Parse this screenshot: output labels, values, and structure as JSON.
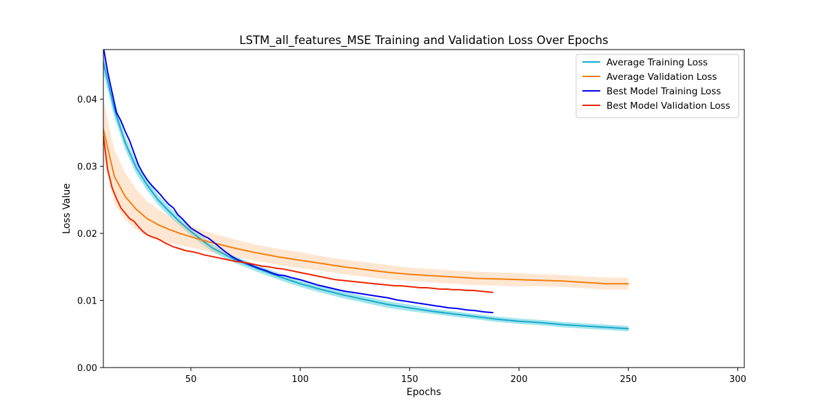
{
  "chart_data": {
    "type": "line",
    "title": "LSTM_all_features_MSE  Training and Validation Loss Over Epochs",
    "xlabel": "Epochs",
    "ylabel": "Loss Value",
    "xlim": [
      10,
      303
    ],
    "ylim": [
      0,
      0.0474
    ],
    "x_ticks": [
      50,
      100,
      150,
      200,
      250,
      300
    ],
    "y_ticks": [
      0.0,
      0.01,
      0.02,
      0.03,
      0.04
    ],
    "x_tick_labels": [
      "50",
      "100",
      "150",
      "200",
      "250",
      "300"
    ],
    "y_tick_labels": [
      "0.00",
      "0.01",
      "0.02",
      "0.03",
      "0.04"
    ],
    "grid": false,
    "legend_position": "top-right",
    "series": [
      {
        "name": "Average Training Loss",
        "color": "#17a8cc",
        "band_color": "#17becf",
        "x": [
          10,
          15,
          20,
          25,
          30,
          35,
          40,
          45,
          50,
          55,
          60,
          70,
          80,
          90,
          100,
          110,
          120,
          130,
          140,
          150,
          160,
          170,
          180,
          190,
          200,
          210,
          220,
          230,
          240,
          250
        ],
        "y": [
          0.0455,
          0.0385,
          0.0335,
          0.0298,
          0.0272,
          0.025,
          0.0233,
          0.0217,
          0.0203,
          0.019,
          0.0178,
          0.0161,
          0.0148,
          0.0136,
          0.0125,
          0.0116,
          0.0108,
          0.0101,
          0.0094,
          0.0089,
          0.0084,
          0.008,
          0.0076,
          0.0072,
          0.0069,
          0.0067,
          0.0064,
          0.0062,
          0.006,
          0.0058
        ],
        "band": [
          0.0015,
          0.0012,
          0.001,
          0.0009,
          0.0008,
          0.0007,
          0.0007,
          0.0006,
          0.0006,
          0.0006,
          0.0006,
          0.0005,
          0.0005,
          0.0005,
          0.0005,
          0.0005,
          0.0005,
          0.0005,
          0.0005,
          0.0005,
          0.0004,
          0.0004,
          0.0004,
          0.0004,
          0.0004,
          0.0004,
          0.0004,
          0.0004,
          0.0004,
          0.0004
        ]
      },
      {
        "name": "Average Validation Loss",
        "color": "#f47d0e",
        "band_color": "#fcc28f",
        "x": [
          10,
          15,
          20,
          25,
          30,
          35,
          40,
          45,
          50,
          55,
          60,
          70,
          80,
          90,
          100,
          110,
          120,
          130,
          140,
          150,
          160,
          170,
          180,
          190,
          200,
          210,
          220,
          230,
          240,
          250
        ],
        "y": [
          0.0355,
          0.0285,
          0.0255,
          0.0236,
          0.0222,
          0.0213,
          0.0206,
          0.02,
          0.0195,
          0.019,
          0.0186,
          0.0178,
          0.0171,
          0.0165,
          0.016,
          0.0155,
          0.015,
          0.0146,
          0.0142,
          0.0139,
          0.0137,
          0.0135,
          0.0133,
          0.0132,
          0.0131,
          0.013,
          0.0129,
          0.0127,
          0.0125,
          0.0125
        ],
        "band": [
          0.0045,
          0.004,
          0.0035,
          0.003,
          0.0026,
          0.0023,
          0.002,
          0.0018,
          0.0016,
          0.0015,
          0.0014,
          0.0013,
          0.0012,
          0.0012,
          0.0012,
          0.0011,
          0.0011,
          0.0011,
          0.0011,
          0.001,
          0.001,
          0.001,
          0.001,
          0.001,
          0.001,
          0.0009,
          0.0009,
          0.0009,
          0.0009,
          0.0009
        ]
      },
      {
        "name": "Best Model Training Loss",
        "color": "#0000ee",
        "x": [
          10,
          12,
          14,
          16,
          18,
          20,
          22,
          24,
          26,
          28,
          30,
          32,
          34,
          36,
          38,
          40,
          42,
          44,
          46,
          48,
          50,
          52,
          54,
          56,
          58,
          60,
          63,
          66,
          69,
          72,
          75,
          78,
          81,
          84,
          87,
          90,
          93,
          96,
          100,
          104,
          108,
          112,
          116,
          120,
          124,
          128,
          132,
          136,
          140,
          144,
          148,
          152,
          156,
          160,
          164,
          168,
          172,
          176,
          180,
          184,
          188
        ],
        "y": [
          0.0478,
          0.044,
          0.041,
          0.038,
          0.0368,
          0.0352,
          0.0338,
          0.032,
          0.0302,
          0.029,
          0.028,
          0.0272,
          0.0265,
          0.0258,
          0.025,
          0.0243,
          0.0238,
          0.0228,
          0.0222,
          0.0215,
          0.0208,
          0.0204,
          0.02,
          0.0196,
          0.0193,
          0.0188,
          0.018,
          0.0172,
          0.0165,
          0.016,
          0.0156,
          0.0152,
          0.0148,
          0.0145,
          0.0141,
          0.0138,
          0.0137,
          0.0134,
          0.0131,
          0.0127,
          0.0123,
          0.012,
          0.0117,
          0.0114,
          0.0112,
          0.011,
          0.0108,
          0.0106,
          0.0104,
          0.0101,
          0.0099,
          0.0097,
          0.0095,
          0.0093,
          0.0091,
          0.0089,
          0.0088,
          0.0086,
          0.0085,
          0.0083,
          0.0082
        ]
      },
      {
        "name": "Best Model Validation Loss",
        "color": "#ee2200",
        "x": [
          10,
          12,
          14,
          16,
          18,
          20,
          22,
          24,
          26,
          28,
          30,
          32,
          34,
          36,
          38,
          40,
          42,
          44,
          46,
          48,
          50,
          53,
          56,
          59,
          62,
          65,
          68,
          71,
          74,
          77,
          80,
          83,
          86,
          89,
          92,
          95,
          98,
          101,
          104,
          107,
          110,
          113,
          116,
          119,
          122,
          125,
          128,
          131,
          134,
          137,
          140,
          143,
          146,
          149,
          152,
          155,
          158,
          161,
          164,
          167,
          170,
          173,
          176,
          179,
          182,
          185,
          188
        ],
        "y": [
          0.0345,
          0.0295,
          0.0268,
          0.0252,
          0.0238,
          0.023,
          0.0222,
          0.0218,
          0.021,
          0.0203,
          0.0198,
          0.0195,
          0.0193,
          0.019,
          0.0186,
          0.0183,
          0.018,
          0.0178,
          0.0176,
          0.0174,
          0.0173,
          0.0171,
          0.0168,
          0.0166,
          0.0164,
          0.0162,
          0.016,
          0.0158,
          0.0157,
          0.0155,
          0.0153,
          0.0151,
          0.015,
          0.0148,
          0.0147,
          0.0145,
          0.0143,
          0.0141,
          0.0139,
          0.0137,
          0.0135,
          0.0133,
          0.0131,
          0.013,
          0.0129,
          0.0128,
          0.0127,
          0.0126,
          0.0125,
          0.0124,
          0.0123,
          0.0122,
          0.0122,
          0.0121,
          0.012,
          0.0119,
          0.0119,
          0.0118,
          0.0117,
          0.0117,
          0.0116,
          0.0116,
          0.0115,
          0.0115,
          0.0114,
          0.0113,
          0.0112
        ]
      }
    ]
  }
}
